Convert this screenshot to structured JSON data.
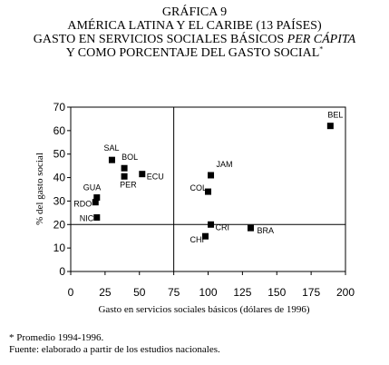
{
  "header": {
    "line1": "GRÁFICA 9",
    "line2": "AMÉRICA LATINA Y EL CARIBE (13 PAÍSES)",
    "line3_a": "GASTO EN SERVICIOS SOCIALES BÁSICOS ",
    "line3_b": "PER CÁPITA",
    "line4": "Y COMO PORCENTAJE DEL GASTO SOCIAL",
    "line4_mark": "*"
  },
  "chart_data": {
    "type": "scatter",
    "xlabel": "Gasto en servicios sociales básicos (dólares de 1996)",
    "ylabel": "% del gasto social",
    "xlim": [
      0,
      200
    ],
    "ylim": [
      0,
      70
    ],
    "xticks": [
      "0",
      "25",
      "50",
      "75",
      "100",
      "125",
      "150",
      "175",
      "200"
    ],
    "yticks": [
      "0",
      "10",
      "20",
      "30",
      "40",
      "50",
      "60",
      "70"
    ],
    "reference_lines": {
      "x": 75,
      "y": 20
    },
    "grid": false,
    "points": [
      {
        "label": "BEL",
        "x": 189,
        "y": 62
      },
      {
        "label": "SAL",
        "x": 30,
        "y": 47.5
      },
      {
        "label": "BOL",
        "x": 39,
        "y": 44
      },
      {
        "label": "PER",
        "x": 39,
        "y": 40.5
      },
      {
        "label": "ECU",
        "x": 52,
        "y": 41.5
      },
      {
        "label": "JAM",
        "x": 102,
        "y": 41
      },
      {
        "label": "COL",
        "x": 100,
        "y": 34
      },
      {
        "label": "GUA",
        "x": 19,
        "y": 31.5
      },
      {
        "label": "RDO",
        "x": 18,
        "y": 29.5
      },
      {
        "label": "NIC",
        "x": 19,
        "y": 23
      },
      {
        "label": "CRI",
        "x": 102,
        "y": 20
      },
      {
        "label": "BRA",
        "x": 131,
        "y": 18.5
      },
      {
        "label": "CHI",
        "x": 98,
        "y": 15
      }
    ]
  },
  "footnotes": {
    "note1": "* Promedio 1994-1996.",
    "note2": "Fuente: elaborado a partir de los estudios nacionales."
  }
}
